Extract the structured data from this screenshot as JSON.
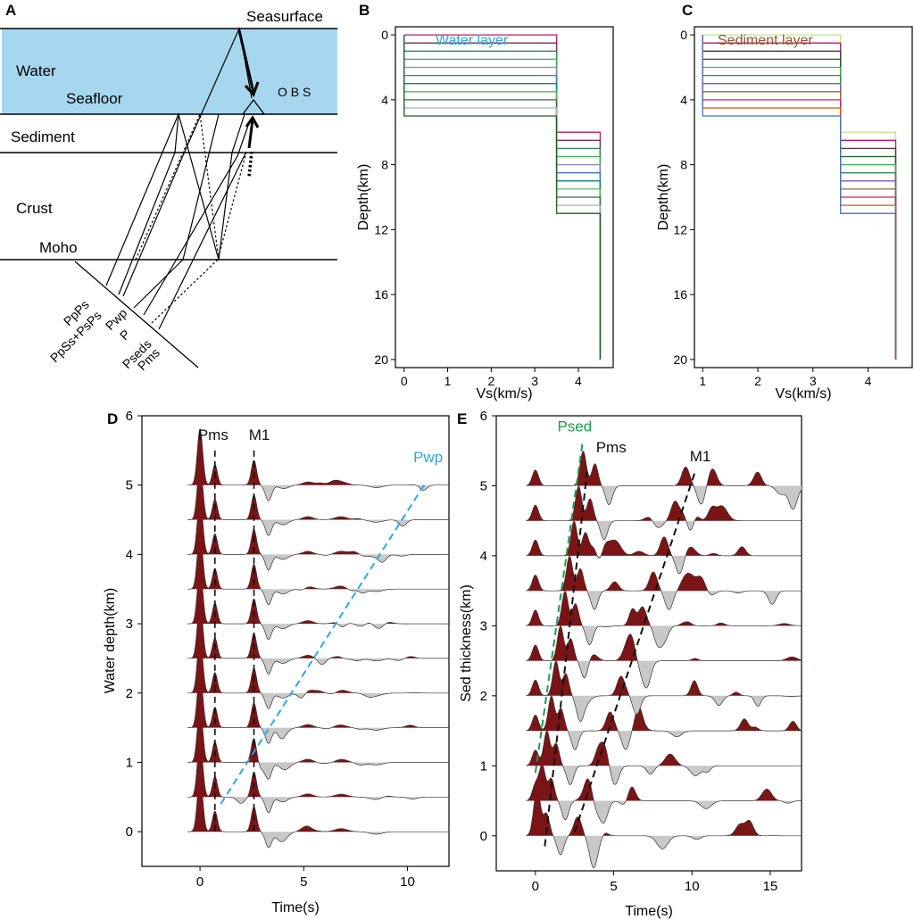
{
  "panel_labels": {
    "a": "A",
    "b": "B",
    "c": "C",
    "d": "D",
    "e": "E"
  },
  "schematic": {
    "seasurface": "Seasurface",
    "water": "Water",
    "seafloor": "Seafloor",
    "obs": "O B S",
    "sediment": "Sediment",
    "crust": "Crust",
    "moho": "Moho",
    "phases": [
      "PpPs",
      "PpSs+PsPs",
      "Pwp",
      "P",
      "Pseds",
      "Pms"
    ],
    "water_color": "#a6d7ef"
  },
  "chart_data": [
    {
      "id": "B",
      "type": "line",
      "title": "Water layer",
      "title_color": "#29a9e1",
      "xlabel": "Vs(km/s)",
      "ylabel": "Depth(km)",
      "xlim": [
        -0.2,
        4.8
      ],
      "ylim": [
        20.5,
        -0.5
      ],
      "xticks": [
        0,
        1,
        2,
        3,
        4
      ],
      "yticks": [
        0,
        4,
        8,
        12,
        16,
        20
      ],
      "layer1": {
        "vs": 0,
        "top_depths": [
          0,
          0.5,
          1,
          1.5,
          2,
          2.5,
          3,
          3.5,
          4,
          4.5,
          5
        ],
        "vs_below": 3.5
      },
      "layer2": {
        "vs": 3.5,
        "top_depths": [
          6,
          6.5,
          7,
          7.5,
          8,
          8.5,
          9,
          9.5,
          10,
          10.5,
          11
        ],
        "vs_below": 4.5
      },
      "bottom_depth": 20,
      "colors": [
        "#c2185b",
        "#7b2d55",
        "#2e8b57",
        "#3cb44b",
        "#8a8ab0",
        "#4472c4",
        "#00897b",
        "#5cb85c",
        "#2f6f3e",
        "#b0b0b0",
        "#1b5e20"
      ]
    },
    {
      "id": "C",
      "type": "line",
      "title": "Sediment layer",
      "title_color": "#8b5a2b",
      "xlabel": "Vs(km/s)",
      "ylabel": "Depth(km)",
      "xlim": [
        0.85,
        4.8
      ],
      "ylim": [
        20.5,
        -0.5
      ],
      "xticks": [
        1,
        2,
        3,
        4
      ],
      "yticks": [
        0,
        4,
        8,
        12,
        16,
        20
      ],
      "layer1": {
        "vs": 1,
        "top_depths": [
          0,
          0.5,
          1,
          1.5,
          2,
          2.5,
          3,
          3.5,
          4,
          4.5,
          5
        ],
        "vs_below": 3.5
      },
      "layer2": {
        "vs": 3.5,
        "top_depths": [
          6,
          6.5,
          7,
          7.5,
          8,
          8.5,
          9,
          9.5,
          10,
          10.5,
          11
        ],
        "vs_below": 4.5
      },
      "bottom_depth": 20,
      "colors": [
        "#c8e28a",
        "#c2185b",
        "#4e342e",
        "#1b5e20",
        "#3cb44b",
        "#2e8b57",
        "#7e57c2",
        "#8a6d3b",
        "#d81b60",
        "#e65100",
        "#4472c4"
      ]
    },
    {
      "id": "D",
      "type": "line",
      "subtype": "receiver-function-traces",
      "xlabel": "Time(s)",
      "ylabel": "Water depth(km)",
      "xlim": [
        -2.8,
        12
      ],
      "ylim": [
        -0.5,
        6
      ],
      "xticks": [
        0,
        5,
        10
      ],
      "yticks": [
        0,
        1,
        2,
        3,
        4,
        5,
        6
      ],
      "trace_offsets": [
        0,
        0.5,
        1,
        1.5,
        2,
        2.5,
        3,
        3.5,
        4,
        4.5,
        5
      ],
      "amplitude_scale": 0.9,
      "positive_color": "#7b1416",
      "negative_color": "#c8c8c8",
      "pulses_common": [
        {
          "t": 0,
          "a": 0.9,
          "w": 0.13
        },
        {
          "t": 0.72,
          "a": 0.33,
          "w": 0.12
        },
        {
          "t": 2.6,
          "a": 0.4,
          "w": 0.13
        },
        {
          "t": 3.3,
          "a": -0.25,
          "w": 0.15
        },
        {
          "t": 4.0,
          "a": -0.08,
          "w": 0.25
        },
        {
          "t": 5.2,
          "a": 0.05,
          "w": 0.25
        },
        {
          "t": 6.8,
          "a": 0.05,
          "w": 0.3
        },
        {
          "t": 8.5,
          "a": -0.04,
          "w": 0.3
        }
      ],
      "pwp_trend": {
        "t0": 1.0,
        "dt_per_km": 1.95,
        "amplitude": -0.1
      },
      "annotations": [
        {
          "label": "Pms",
          "time": 0.72,
          "color": "#111111"
        },
        {
          "label": "M1",
          "time": 2.6,
          "color": "#111111"
        },
        {
          "label": "Pwp",
          "t_start": 1.0,
          "d_start": 0.4,
          "t_end": 10.8,
          "d_end": 5.0,
          "color": "#29a9e1"
        }
      ]
    },
    {
      "id": "E",
      "type": "line",
      "subtype": "receiver-function-traces",
      "xlabel": "Time(s)",
      "ylabel": "Sed thickness(km)",
      "xlim": [
        -2.5,
        17
      ],
      "ylim": [
        -0.5,
        6
      ],
      "xticks": [
        0,
        5,
        10,
        15
      ],
      "yticks": [
        0,
        1,
        2,
        3,
        4,
        5,
        6
      ],
      "trace_offsets": [
        0,
        0.5,
        1,
        1.5,
        2,
        2.5,
        3,
        3.5,
        4,
        4.5,
        5
      ],
      "amplitude_scale": 0.9,
      "positive_color": "#7b1416",
      "negative_color": "#c8c8c8",
      "pulses_common": [
        {
          "t": 0,
          "a": 0.25,
          "w": 0.2
        }
      ],
      "psed_trend": {
        "t0": 0.0,
        "dt_per_km": 0.58,
        "amplitude": 0.55
      },
      "pms_trend": {
        "t0": 0.7,
        "dt_per_km": 0.62,
        "amplitude": 0.35
      },
      "m1_trend": {
        "t0": 2.7,
        "dt_per_km": 1.38,
        "amplitude": 0.3
      },
      "annotations": [
        {
          "label": "Psed",
          "t_start": 0.0,
          "d_start": 0.9,
          "t_end": 3.0,
          "d_end": 5.6,
          "color": "#1aa04b"
        },
        {
          "label": "Pms",
          "t_start": 0.6,
          "d_start": -0.15,
          "t_end": 3.3,
          "d_end": 5.2,
          "color": "#111111"
        },
        {
          "label": "M1",
          "t_start": 2.5,
          "d_start": 0.05,
          "t_end": 10.2,
          "d_end": 5.2,
          "color": "#111111"
        }
      ]
    }
  ]
}
